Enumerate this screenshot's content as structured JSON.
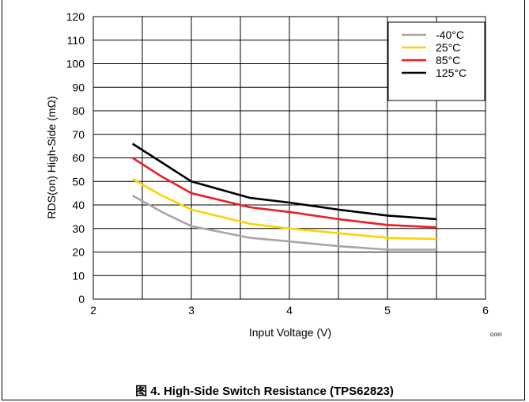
{
  "chart_data": {
    "type": "line",
    "xlabel": "Input Voltage (V)",
    "ylabel": "RDS(on) High-Side (mΩ)",
    "xlim": [
      2,
      6
    ],
    "ylim": [
      0,
      120
    ],
    "x_ticks": [
      2,
      3,
      4,
      5,
      6
    ],
    "y_ticks": [
      0,
      10,
      20,
      30,
      40,
      50,
      60,
      70,
      80,
      90,
      100,
      110,
      120
    ],
    "grid": true,
    "legend_position": "top-right",
    "series": [
      {
        "name": "-40°C",
        "color": "#a6a6a6",
        "x": [
          2.4,
          2.7,
          3.0,
          3.6,
          4.0,
          4.5,
          5.0,
          5.5
        ],
        "y": [
          44,
          37,
          31,
          26,
          24.5,
          22.5,
          21,
          21
        ]
      },
      {
        "name": "25°C",
        "color": "#ffd200",
        "x": [
          2.4,
          2.7,
          3.0,
          3.6,
          4.0,
          4.5,
          5.0,
          5.5
        ],
        "y": [
          51,
          44,
          38,
          32,
          30,
          28,
          26,
          25.5
        ]
      },
      {
        "name": "85°C",
        "color": "#ee1c25",
        "x": [
          2.4,
          2.7,
          3.0,
          3.6,
          4.0,
          4.5,
          5.0,
          5.5
        ],
        "y": [
          60,
          52,
          45,
          39,
          37,
          34,
          31.5,
          30.5
        ]
      },
      {
        "name": "125°C",
        "color": "#000000",
        "x": [
          2.4,
          2.7,
          3.0,
          3.6,
          4.0,
          4.5,
          5.0,
          5.5
        ],
        "y": [
          66,
          58,
          50,
          43,
          41,
          38,
          35.5,
          34
        ]
      }
    ]
  },
  "code_label": "G000",
  "caption": "图 4. High-Side Switch Resistance (TPS62823)"
}
